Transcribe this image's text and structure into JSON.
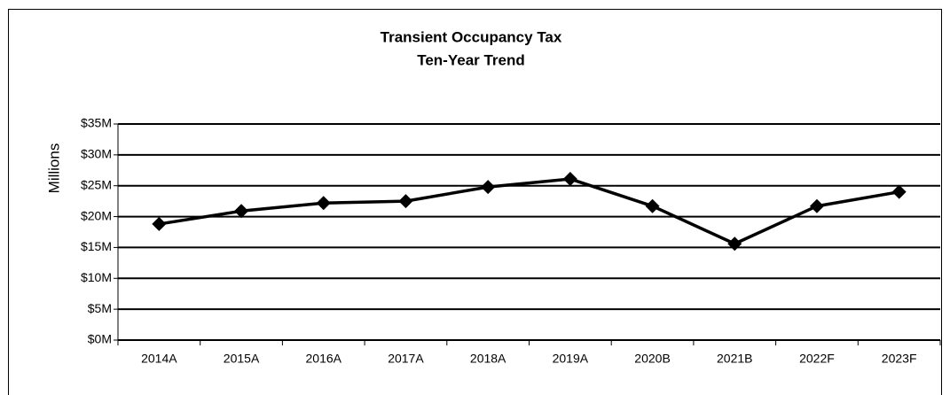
{
  "chart_data": {
    "type": "line",
    "title": "Transient Occupancy Tax",
    "subtitle": "Ten-Year Trend",
    "y_label": "Millions",
    "categories": [
      "2014A",
      "2015A",
      "2016A",
      "2017A",
      "2018A",
      "2019A",
      "2020B",
      "2021B",
      "2022F",
      "2023F"
    ],
    "series": [
      {
        "name": "Transient Occupancy Tax",
        "color": "#000000",
        "values": [
          18.8,
          20.9,
          22.2,
          22.5,
          24.8,
          26.1,
          21.7,
          15.6,
          21.7,
          24.0
        ]
      }
    ],
    "ylim": [
      0,
      35
    ],
    "yticks": [
      {
        "value": 0,
        "label": "$0M"
      },
      {
        "value": 5,
        "label": "$5M"
      },
      {
        "value": 10,
        "label": "$10M"
      },
      {
        "value": 15,
        "label": "$15M"
      },
      {
        "value": 20,
        "label": "$20M"
      },
      {
        "value": 25,
        "label": "$25M"
      },
      {
        "value": 30,
        "label": "$30M"
      },
      {
        "value": 35,
        "label": "$35M"
      }
    ],
    "grid": true
  }
}
